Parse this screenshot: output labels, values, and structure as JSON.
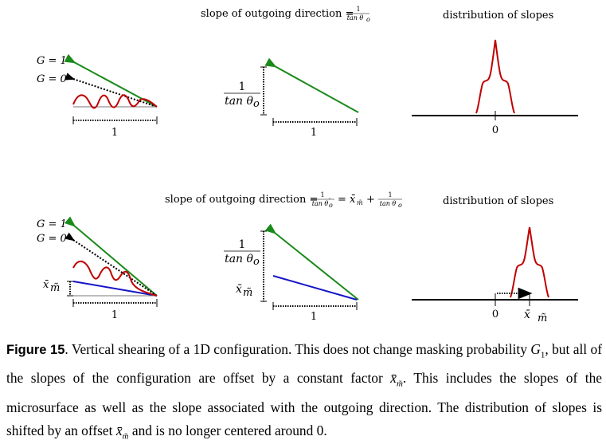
{
  "figure": {
    "top": {
      "slope_label": "slope of outgoing direction =",
      "frac_num": "1",
      "frac_den": "tan θ",
      "frac_den_sub": "o",
      "dist_title": "distribution of slopes",
      "g1": "G = 1",
      "g0": "G = 0",
      "width_tick": "1",
      "height_num": "1",
      "height_den": "tan θ",
      "height_den_sub": "o",
      "width_tick2": "1",
      "origin": "0"
    },
    "bottom": {
      "slope_label": "slope of outgoing direction =",
      "frac1_num": "1",
      "frac1_den": "tan θ",
      "frac1_den_sub": "o",
      "frac1_prime": "′",
      "eq_mid": "= x̄",
      "eq_mid_sub": "m̃",
      "plus": "+",
      "frac2_num": "1",
      "frac2_den": "tan θ",
      "frac2_den_sub": "o",
      "dist_title": "distribution of slopes",
      "g1": "G = 1",
      "g0": "G = 0",
      "offset_label": "x̄",
      "offset_sub": "m̃",
      "width_tick": "1",
      "height_num": "1",
      "height_den": "tan θ",
      "height_den_sub": "o",
      "offset_label2": "x̄",
      "offset_sub2": "m̃",
      "width_tick2": "1",
      "origin": "0",
      "shift_label": "x̄",
      "shift_sub": "m̃"
    }
  },
  "caption": {
    "label": "Figure 15",
    "p1": ". Vertical shearing of a 1D configuration. This does not change masking probability ",
    "g": "G",
    "g_sub": "1",
    "p2": ", but all of the slopes of the configuration are offset by a constant factor ",
    "x": "x̄",
    "x_sub": "m̃",
    "p3": ". This includes the slopes of the microsurface as well as the slope associated with the outgoing direction. The distribution of slopes is shifted by an offset ",
    "x2": "x̄",
    "x2_sub": "m̃",
    "p4": " and is no longer centered around 0."
  },
  "colors": {
    "green": "#1a8a1a",
    "red": "#c00000",
    "blue": "#1414c8"
  }
}
